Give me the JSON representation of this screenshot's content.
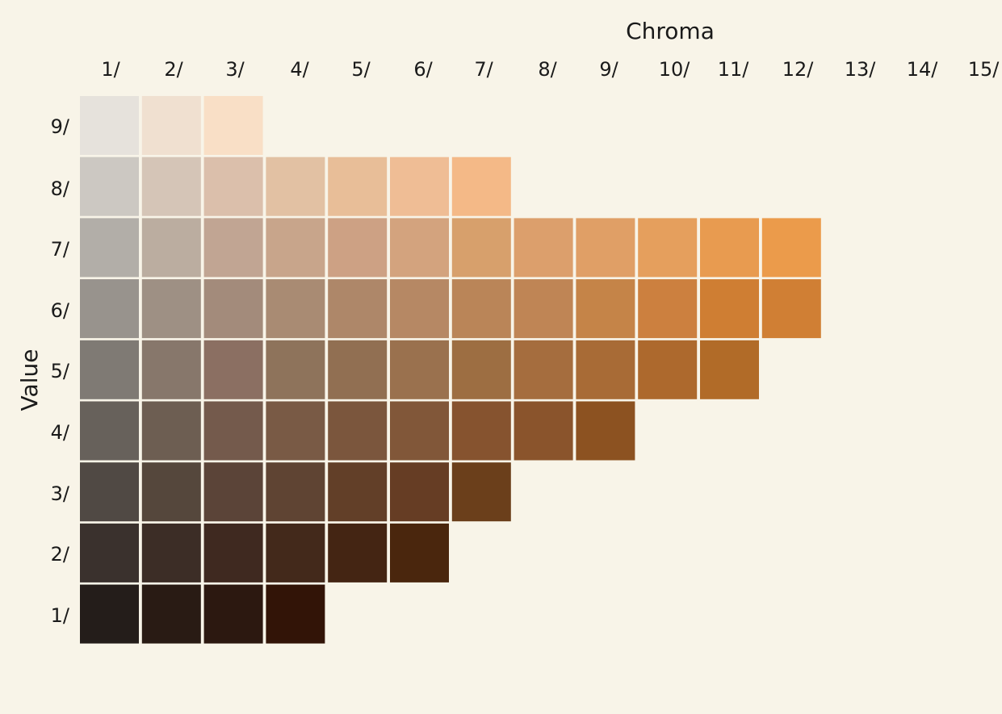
{
  "chart_data": {
    "type": "heatmap",
    "xlabel": "Chroma",
    "ylabel": "Value",
    "x_ticks": [
      "1/",
      "2/",
      "3/",
      "4/",
      "5/",
      "6/",
      "7/",
      "8/",
      "9/",
      "10/",
      "11/",
      "12/",
      "13/",
      "14/",
      "15/"
    ],
    "y_ticks": [
      "9/",
      "8/",
      "7/",
      "6/",
      "5/",
      "4/",
      "3/",
      "2/",
      "1/"
    ],
    "rows": [
      {
        "value": "9/",
        "colors": [
          "#e6e2dc",
          "#f0e0d0",
          "#f9dfc6"
        ]
      },
      {
        "value": "8/",
        "colors": [
          "#ccc8c2",
          "#d5c5b7",
          "#dbbfab",
          "#e2c1a3",
          "#e8be98",
          "#efbd95",
          "#f4b987"
        ]
      },
      {
        "value": "7/",
        "colors": [
          "#b2aea8",
          "#bbada0",
          "#c1a593",
          "#c8a58b",
          "#cda184",
          "#d3a37e",
          "#d7a06c",
          "#dc9f6c",
          "#e09f66",
          "#e59f5d",
          "#e89b50",
          "#eb9b4b"
        ]
      },
      {
        "value": "6/",
        "colors": [
          "#98938d",
          "#9e9084",
          "#a38b7b",
          "#a98b73",
          "#ae8769",
          "#b68864",
          "#ba8558",
          "#bf8555",
          "#c58448",
          "#cc803f",
          "#cf7e33",
          "#d07f34"
        ]
      },
      {
        "value": "5/",
        "colors": [
          "#7f7a74",
          "#87776b",
          "#8b6f62",
          "#8e735b",
          "#916f52",
          "#9a714e",
          "#9d6e42",
          "#a56d3e",
          "#a86b36",
          "#ad692d",
          "#b16b28"
        ]
      },
      {
        "value": "4/",
        "colors": [
          "#67615b",
          "#6d5e52",
          "#745a4c",
          "#795a45",
          "#7b563d",
          "#815739",
          "#86532f",
          "#8a542c",
          "#8c5221"
        ]
      },
      {
        "value": "3/",
        "colors": [
          "#504944",
          "#55473c",
          "#5b4438",
          "#5f4433",
          "#623f28",
          "#663d24",
          "#6b3f1b"
        ]
      },
      {
        "value": "2/",
        "colors": [
          "#3a312d",
          "#3c2d26",
          "#3f2920",
          "#43291b",
          "#442513",
          "#4a260d"
        ]
      },
      {
        "value": "1/",
        "colors": [
          "#241d1a",
          "#291b14",
          "#2c1810",
          "#321407"
        ]
      }
    ]
  }
}
